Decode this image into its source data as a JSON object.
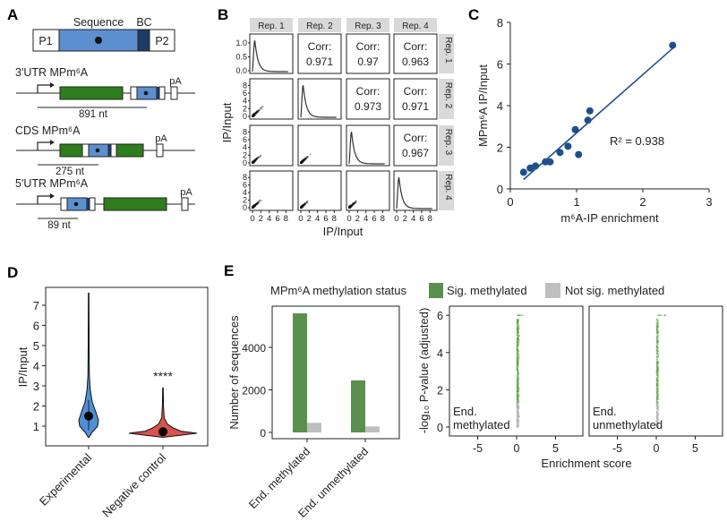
{
  "panel_labels": {
    "a": "A",
    "b": "B",
    "c": "C",
    "d": "D",
    "e": "E"
  },
  "colors": {
    "blue": "#5b8fd0",
    "dark_blue": "#1f3a63",
    "green": "#2e7d1e",
    "fit_line": "#1f4e8c",
    "point": "#1f4e8c",
    "violin_exp": "#4f8fd6",
    "violin_neg": "#d9534f",
    "sig": "#5a8f4e",
    "notsig": "#bfbfbf",
    "strip": "#d9d9d9"
  },
  "panel_a": {
    "construct": {
      "p1": "P1",
      "p2": "P2",
      "sequence": "Sequence",
      "bc": "BC"
    },
    "reporters": [
      {
        "label": "3'UTR MPm⁶A",
        "distance": "891 nt",
        "pa": "pA"
      },
      {
        "label": "CDS MPm⁶A",
        "distance": "275 nt",
        "pa": "pA"
      },
      {
        "label": "5'UTR MPm⁶A",
        "distance": "89 nt",
        "pa": "pA"
      }
    ]
  },
  "chart_data": [
    {
      "panel": "B",
      "type": "scatter",
      "xlabel": "IP/Input",
      "ylabel": "IP/Input",
      "replicates": [
        "Rep. 1",
        "Rep. 2",
        "Rep. 3",
        "Rep. 4"
      ],
      "diag_ticks": [
        "0.0",
        "0.5",
        "1.0"
      ],
      "ticks": [
        "0",
        "2",
        "4",
        "6",
        "8"
      ],
      "corr_label": "Corr:",
      "correlations": [
        {
          "row": 1,
          "col": 2,
          "value": "0.971"
        },
        {
          "row": 1,
          "col": 3,
          "value": "0.97"
        },
        {
          "row": 1,
          "col": 4,
          "value": "0.963"
        },
        {
          "row": 2,
          "col": 3,
          "value": "0.973"
        },
        {
          "row": 2,
          "col": 4,
          "value": "0.971"
        },
        {
          "row": 3,
          "col": 4,
          "value": "0.967"
        }
      ]
    },
    {
      "panel": "C",
      "type": "scatter",
      "xlabel": "m⁶A-IP enrichment",
      "ylabel": "MPm⁶A IP/Input",
      "xlim": [
        0,
        3
      ],
      "ylim": [
        0,
        8
      ],
      "xticks": [
        "0",
        "1",
        "2",
        "3"
      ],
      "yticks": [
        "0",
        "2",
        "4",
        "6",
        "8"
      ],
      "annotation": "R² = 0.938",
      "points": [
        [
          0.2,
          0.8
        ],
        [
          0.3,
          1.0
        ],
        [
          0.38,
          1.1
        ],
        [
          0.53,
          1.3
        ],
        [
          0.6,
          1.3
        ],
        [
          0.75,
          1.75
        ],
        [
          0.87,
          2.05
        ],
        [
          0.98,
          2.85
        ],
        [
          1.03,
          1.65
        ],
        [
          1.17,
          3.3
        ],
        [
          1.2,
          3.75
        ],
        [
          2.45,
          6.9
        ]
      ],
      "fit": [
        [
          0.2,
          0.45
        ],
        [
          2.45,
          6.75
        ]
      ]
    },
    {
      "panel": "D",
      "type": "violin",
      "ylabel": "IP/Input",
      "ylim": [
        0,
        7.7
      ],
      "yticks": [
        "1",
        "2",
        "3",
        "4",
        "5",
        "6",
        "7"
      ],
      "categories": [
        "Experimental",
        "Negative control"
      ],
      "medians": [
        1.5,
        0.72
      ],
      "max": [
        7.6,
        2.9
      ],
      "min": [
        0.45,
        0.45
      ],
      "significance": "****"
    },
    {
      "panel": "E-bar",
      "type": "bar",
      "legend_title": "MPm⁶A methylation status",
      "legend": [
        "Sig. methylated",
        "Not sig. methylated"
      ],
      "ylabel": "Number of sequences",
      "yticks": [
        "0",
        "2000",
        "4000"
      ],
      "categories": [
        "End. methylated",
        "End. unmethylated"
      ],
      "series": [
        {
          "name": "Sig. methylated",
          "values": [
            5600,
            2450
          ]
        },
        {
          "name": "Not sig. methylated",
          "values": [
            450,
            280
          ]
        }
      ]
    },
    {
      "panel": "E-volcano",
      "type": "scatter",
      "xlabel": "Enrichment score",
      "ylabel": "-log₁₀ P-value (adjusted)",
      "xticks": [
        "-5",
        "0",
        "5"
      ],
      "yticks": [
        "0",
        "2",
        "4",
        "6"
      ],
      "xlim": [
        -8,
        8.5
      ],
      "ylim": [
        -0.5,
        6.5
      ],
      "facets": [
        "End. methylated",
        "End. unmethylated"
      ]
    }
  ]
}
